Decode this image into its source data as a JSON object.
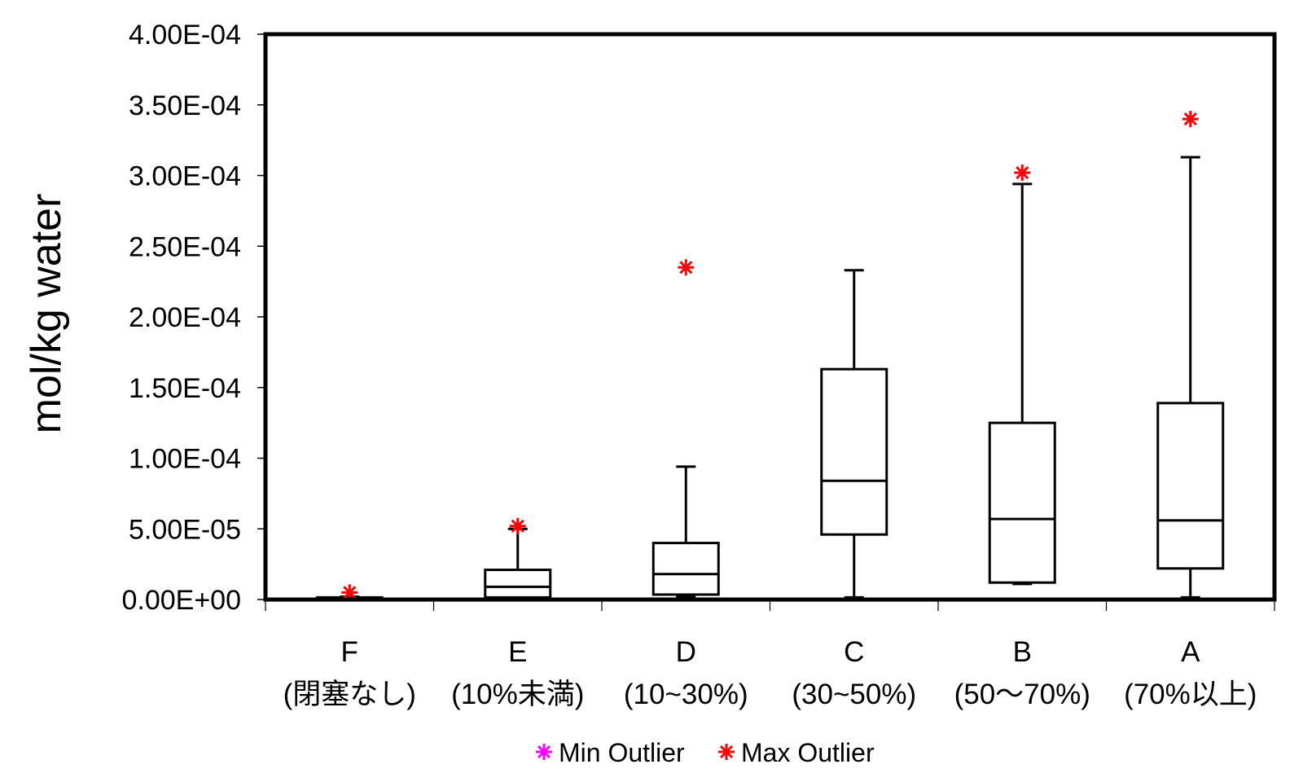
{
  "chart_data": {
    "type": "boxplot",
    "title": "",
    "xlabel": "",
    "ylabel": "mol/kg water",
    "ylim": [
      0,
      0.0004
    ],
    "yticks": [
      "0.00E+00",
      "5.00E-05",
      "1.00E-04",
      "1.50E-04",
      "2.00E-04",
      "2.50E-04",
      "3.00E-04",
      "3.50E-04",
      "4.00E-04"
    ],
    "ytick_values": [
      0,
      5e-05,
      0.0001,
      0.00015,
      0.0002,
      0.00025,
      0.0003,
      0.00035,
      0.0004
    ],
    "grid": false,
    "legend_position": "bottom",
    "categories": [
      {
        "code": "F",
        "sub": "(閉塞なし)"
      },
      {
        "code": "E",
        "sub": "(10%未満)"
      },
      {
        "code": "D",
        "sub": "(10~30%)"
      },
      {
        "code": "C",
        "sub": "(30~50%)"
      },
      {
        "code": "B",
        "sub": "(50〜70%)"
      },
      {
        "code": "A",
        "sub": "(70%以上)"
      }
    ],
    "boxes": [
      {
        "min": 5e-07,
        "q1": 5e-07,
        "median": 8e-07,
        "q3": 1.5e-06,
        "max": 2e-06,
        "max_outlier": 5e-06
      },
      {
        "min": 1e-06,
        "q1": 1.5e-06,
        "median": 9e-06,
        "q3": 2.1e-05,
        "max": 5e-05,
        "max_outlier": 5.2e-05
      },
      {
        "min": 2e-06,
        "q1": 3.5e-06,
        "median": 1.8e-05,
        "q3": 4e-05,
        "max": 9.4e-05,
        "max_outlier": 0.000235
      },
      {
        "min": 1.5e-06,
        "q1": 4.6e-05,
        "median": 8.4e-05,
        "q3": 0.000163,
        "max": 0.000233,
        "max_outlier": null
      },
      {
        "min": 1.1e-05,
        "q1": 1.2e-05,
        "median": 5.7e-05,
        "q3": 0.000125,
        "max": 0.000294,
        "max_outlier": 0.000302
      },
      {
        "min": 1.5e-06,
        "q1": 2.2e-05,
        "median": 5.6e-05,
        "q3": 0.000139,
        "max": 0.000313,
        "max_outlier": 0.00034
      }
    ],
    "legend": [
      {
        "label": "Min Outlier",
        "color": "#ff00ff"
      },
      {
        "label": "Max Outlier",
        "color": "#ff0000"
      }
    ]
  }
}
